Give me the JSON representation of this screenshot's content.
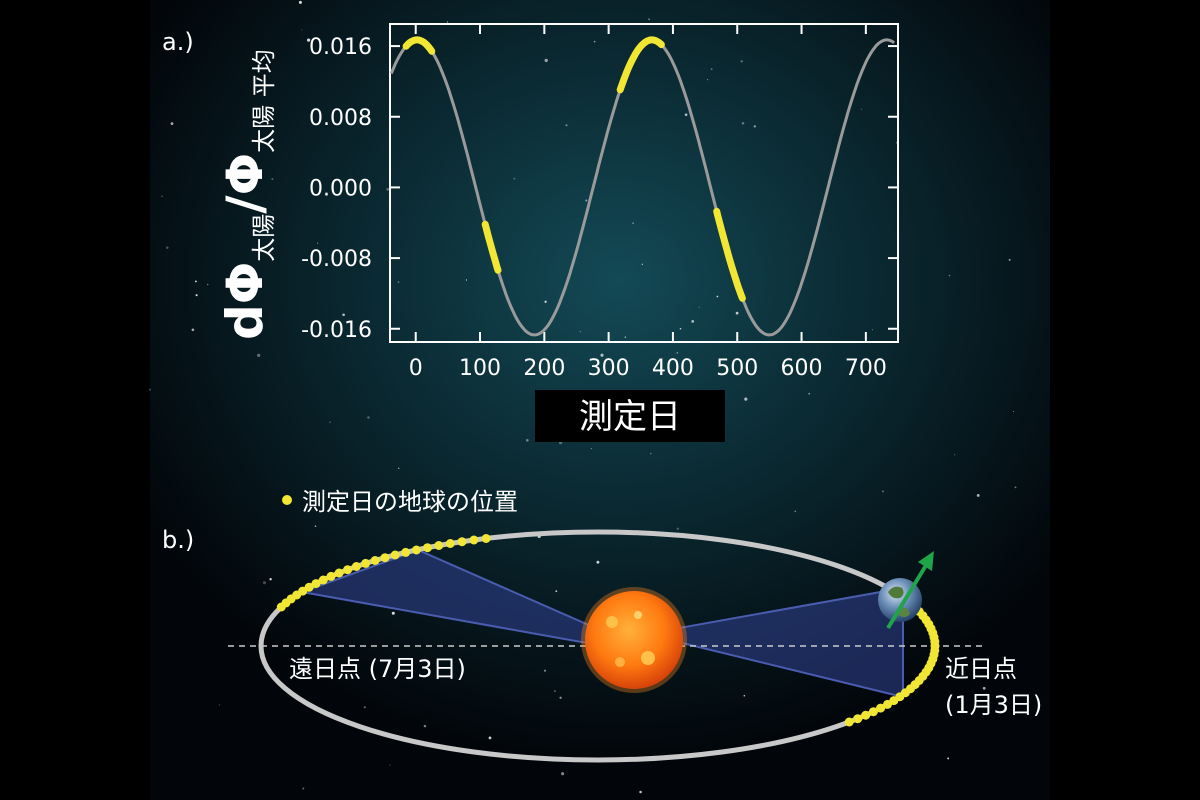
{
  "panel_a": {
    "label": "a.)",
    "ylabel": {
      "d": "d",
      "phi1": "Φ",
      "sub1": "太陽",
      "slash": "/",
      "phi2": "Φ",
      "sub2": "太陽 平均"
    },
    "xlabel": "測定日"
  },
  "chart_data": {
    "type": "line",
    "xlim": [
      -40,
      750
    ],
    "ylim": [
      -0.0175,
      0.0185
    ],
    "x_ticks": [
      "0",
      "100",
      "200",
      "300",
      "400",
      "500",
      "600",
      "700"
    ],
    "y_ticks": [
      "0.016",
      "0.008",
      "0.000",
      "-0.008",
      "-0.016"
    ],
    "curve": {
      "amplitude": 0.0167,
      "period_days": 365.25,
      "peak_day": 2
    },
    "highlight_ranges": [
      [
        -15,
        25
      ],
      [
        318,
        382
      ],
      [
        108,
        128
      ],
      [
        468,
        508
      ]
    ],
    "colors": {
      "curve": "#9a9a9a",
      "highlight": "#f1e634"
    }
  },
  "panel_b": {
    "label": "b.)",
    "legend": "測定日の地球の位置",
    "aphelion": "遠日点 (7月3日)",
    "perihelion_1": "近日点",
    "perihelion_2": "(1月3日)"
  },
  "colors": {
    "background": "#000000",
    "glow": "#103c47",
    "orbit": "#c8c8c8",
    "wedge": "#2d3e88",
    "yellow": "#f1e634",
    "sun": "#ff7a10",
    "arrow": "#1fa44a"
  }
}
